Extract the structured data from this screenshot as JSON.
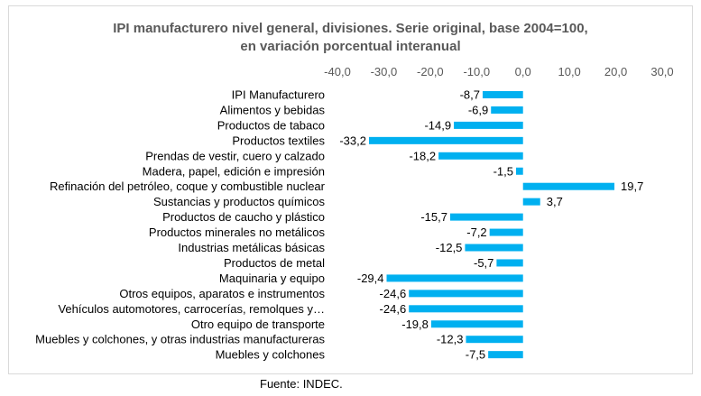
{
  "chart_data": {
    "type": "bar",
    "orientation": "horizontal",
    "title_line1": "IPI manufacturero nivel general, divisiones. Serie original, base 2004=100,",
    "title_line2": "en variación porcentual interanual",
    "categories": [
      "IPI Manufacturero",
      "Alimentos y bebidas",
      "Productos de tabaco",
      "Productos textiles",
      "Prendas de vestir, cuero y calzado",
      "Madera, papel, edición e impresión",
      "Refinación del petróleo, coque y combustible nuclear",
      "Sustancias y productos químicos",
      "Productos de caucho y plástico",
      "Productos minerales no metálicos",
      "Industrias metálicas básicas",
      "Productos de metal",
      "Maquinaria y equipo",
      "Otros equipos, aparatos e instrumentos",
      "Vehículos automotores, carrocerías, remolques y…",
      "Otro equipo de transporte",
      "Muebles y colchones, y otras industrias manufactureras",
      "Muebles y colchones"
    ],
    "values": [
      -8.7,
      -6.9,
      -14.9,
      -33.2,
      -18.2,
      -1.5,
      19.7,
      3.7,
      -15.7,
      -7.2,
      -12.5,
      -5.7,
      -29.4,
      -24.6,
      -24.6,
      -19.8,
      -12.3,
      -7.5
    ],
    "value_labels": [
      "-8,7",
      "-6,9",
      "-14,9",
      "-33,2",
      "-18,2",
      "-1,5",
      "19,7",
      "3,7",
      "-15,7",
      "-7,2",
      "-12,5",
      "-5,7",
      "-29,4",
      "-24,6",
      "-24,6",
      "-19,8",
      "-12,3",
      "-7,5"
    ],
    "xlim": [
      -40,
      30
    ],
    "x_ticks": [
      -40,
      -30,
      -20,
      -10,
      0,
      10,
      20,
      30
    ],
    "x_tick_labels": [
      "-40,0",
      "-30,0",
      "-20,0",
      "-10,0",
      "0,0",
      "10,0",
      "20,0",
      "30,0"
    ],
    "axis_position": "top",
    "grid": false,
    "legend": "none",
    "bar_color": "#00b0f0"
  },
  "source": "Fuente: INDEC."
}
